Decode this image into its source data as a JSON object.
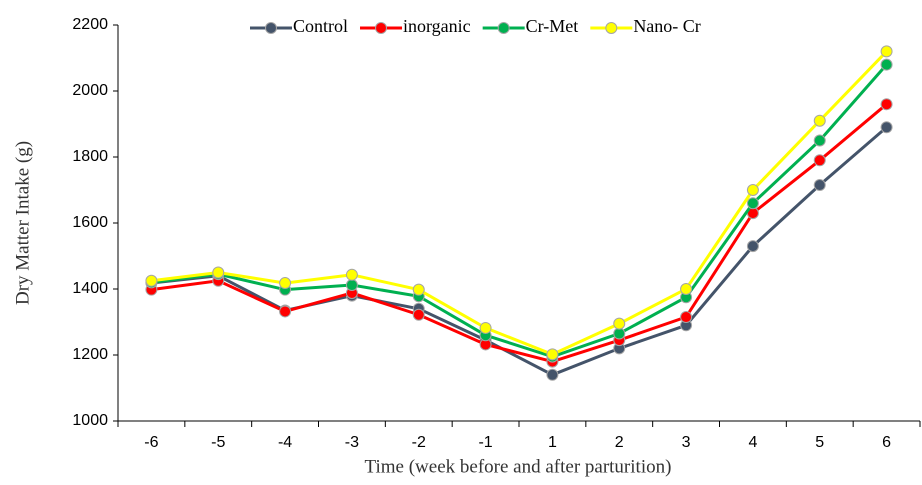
{
  "chart_data": {
    "type": "line",
    "y_label": "Dry Matter Intake (g)",
    "x_label": "Time (week before and after parturition)",
    "categories": [
      "-6",
      "-5",
      "-4",
      "-3",
      "-2",
      "-1",
      "1",
      "2",
      "3",
      "4",
      "5",
      "6"
    ],
    "series": [
      {
        "name": "Control",
        "color": "#44546a",
        "values": [
          1418,
          1440,
          1335,
          1380,
          1340,
          1245,
          1140,
          1220,
          1290,
          1530,
          1715,
          1890
        ]
      },
      {
        "name": "inorganic",
        "color": "#ff0000",
        "values": [
          1398,
          1425,
          1332,
          1388,
          1322,
          1232,
          1180,
          1245,
          1315,
          1630,
          1790,
          1960
        ]
      },
      {
        "name": "Cr-Met",
        "color": "#00b050",
        "values": [
          1420,
          1445,
          1398,
          1412,
          1378,
          1260,
          1195,
          1265,
          1375,
          1660,
          1850,
          2080
        ]
      },
      {
        "name": "Nano- Cr",
        "color": "#ffff00",
        "values": [
          1425,
          1450,
          1418,
          1443,
          1398,
          1282,
          1202,
          1295,
          1400,
          1700,
          1910,
          2120
        ]
      }
    ],
    "ylim": [
      1000,
      2200
    ],
    "yticks": [
      1000,
      1200,
      1400,
      1600,
      1800,
      2000,
      2200
    ],
    "legend": "top",
    "grid": false
  }
}
